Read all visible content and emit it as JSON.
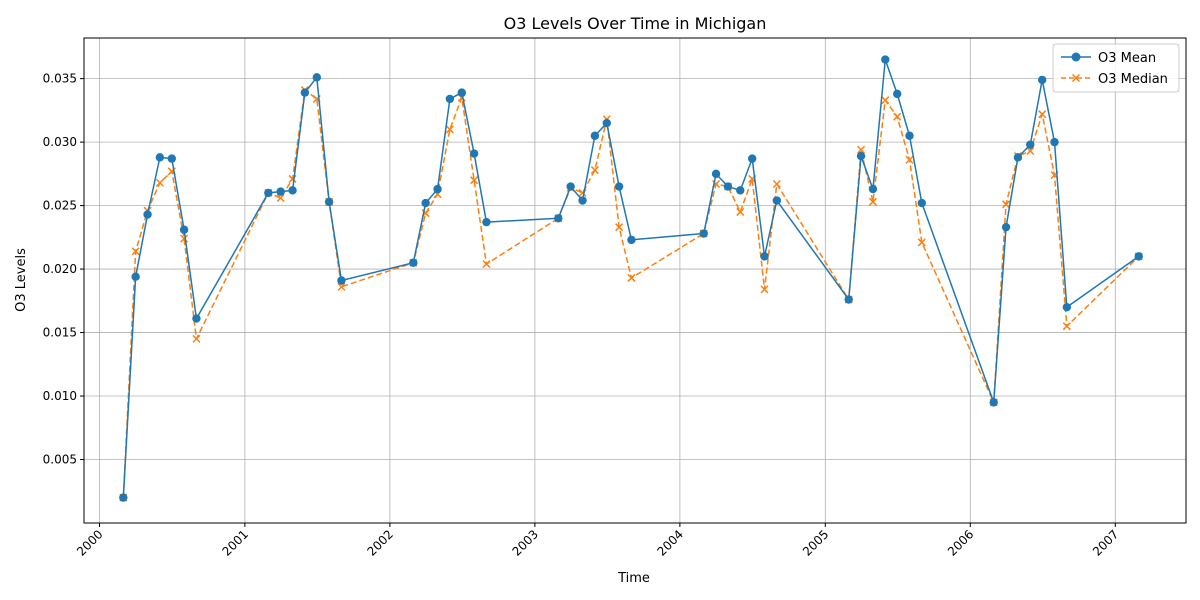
{
  "chart_data": {
    "type": "line",
    "title": "O3 Levels Over Time in Michigan",
    "xlabel": "Time",
    "ylabel": "O3 Levels",
    "x_axis_kind": "date",
    "xlim": [
      "1999-11-23",
      "2007-06-28"
    ],
    "ylim": [
      0.0,
      0.0382
    ],
    "x_ticks": [
      "2000",
      "2001",
      "2002",
      "2003",
      "2004",
      "2005",
      "2006",
      "2007"
    ],
    "y_ticks": [
      "0.005",
      "0.010",
      "0.015",
      "0.020",
      "0.025",
      "0.030",
      "0.035"
    ],
    "y_tick_values": [
      0.005,
      0.01,
      0.015,
      0.02,
      0.025,
      0.03,
      0.035
    ],
    "grid": true,
    "legend_position": "upper right",
    "x": [
      "2000-03-01",
      "2000-04-01",
      "2000-05-01",
      "2000-06-01",
      "2000-07-01",
      "2000-08-01",
      "2000-09-01",
      "2001-03-01",
      "2001-04-01",
      "2001-05-01",
      "2001-06-01",
      "2001-07-01",
      "2001-08-01",
      "2001-09-01",
      "2002-03-01",
      "2002-04-01",
      "2002-05-01",
      "2002-06-01",
      "2002-07-01",
      "2002-08-01",
      "2002-09-01",
      "2003-03-01",
      "2003-04-01",
      "2003-05-01",
      "2003-06-01",
      "2003-07-01",
      "2003-08-01",
      "2003-09-01",
      "2004-03-01",
      "2004-04-01",
      "2004-05-01",
      "2004-06-01",
      "2004-07-01",
      "2004-08-01",
      "2004-09-01",
      "2005-03-01",
      "2005-04-01",
      "2005-05-01",
      "2005-06-01",
      "2005-07-01",
      "2005-08-01",
      "2005-09-01",
      "2006-03-01",
      "2006-04-01",
      "2006-05-01",
      "2006-06-01",
      "2006-07-01",
      "2006-08-01",
      "2006-09-01",
      "2007-03-01"
    ],
    "series": [
      {
        "name": "O3 Mean",
        "color": "#1f77b4",
        "marker": "circle",
        "linestyle": "solid",
        "values": [
          0.002,
          0.0194,
          0.0243,
          0.0288,
          0.0287,
          0.0231,
          0.0161,
          0.026,
          0.0261,
          0.0262,
          0.0339,
          0.0351,
          0.0253,
          0.0191,
          0.0205,
          0.0252,
          0.0263,
          0.0334,
          0.0339,
          0.0291,
          0.0237,
          0.024,
          0.0265,
          0.0254,
          0.0305,
          0.0315,
          0.0265,
          0.0223,
          0.0228,
          0.0275,
          0.0265,
          0.0262,
          0.0287,
          0.021,
          0.0254,
          0.0176,
          0.0289,
          0.0263,
          0.0365,
          0.0338,
          0.0305,
          0.0252,
          0.0095,
          0.0233,
          0.0288,
          0.0298,
          0.0349,
          0.03,
          0.017,
          0.021
        ]
      },
      {
        "name": "O3 Median",
        "color": "#ff7f0e",
        "marker": "x",
        "linestyle": "dashed",
        "values": [
          0.002,
          0.0214,
          0.0246,
          0.0268,
          0.0277,
          0.0224,
          0.0145,
          0.026,
          0.0256,
          0.0271,
          0.0341,
          0.0334,
          0.0253,
          0.0186,
          0.0205,
          0.0244,
          0.0259,
          0.031,
          0.0335,
          0.027,
          0.0204,
          0.024,
          0.0264,
          0.026,
          0.0278,
          0.0318,
          0.0233,
          0.0193,
          0.0228,
          0.0267,
          0.0265,
          0.0245,
          0.0271,
          0.0184,
          0.0267,
          0.0176,
          0.0294,
          0.0253,
          0.0333,
          0.032,
          0.0286,
          0.0221,
          0.0095,
          0.0251,
          0.0289,
          0.0293,
          0.0322,
          0.0274,
          0.0155,
          0.021
        ]
      }
    ]
  }
}
